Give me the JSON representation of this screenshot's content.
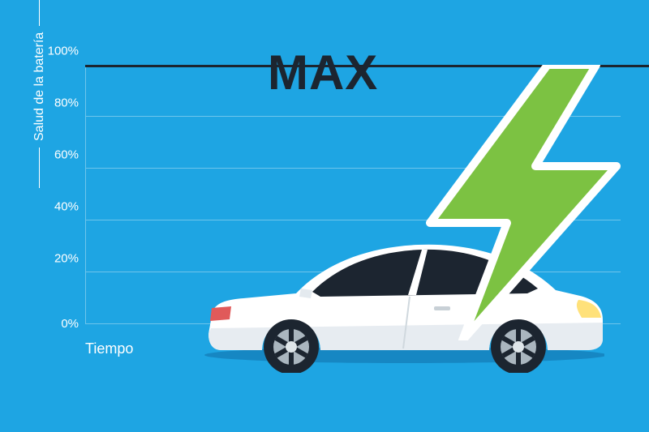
{
  "background_color": "#1ea5e3",
  "chart": {
    "type": "infographic",
    "title": "MAX",
    "title_color": "#1c2530",
    "title_fontsize": 60,
    "title_fontweight": 900,
    "y_axis": {
      "title": "Salud de la batería",
      "title_color": "#ffffff",
      "title_fontsize": 16,
      "min": 0,
      "max": 100,
      "tick_step": 20,
      "ticks": [
        {
          "value": 0,
          "label": "0%"
        },
        {
          "value": 20,
          "label": "20%"
        },
        {
          "value": 40,
          "label": "40%"
        },
        {
          "value": 60,
          "label": "60%"
        },
        {
          "value": 80,
          "label": "80%"
        },
        {
          "value": 100,
          "label": "100%"
        }
      ],
      "tick_label_color": "#ffffff",
      "tick_label_fontsize": 15
    },
    "x_axis": {
      "title": "Tiempo",
      "title_color": "#ffffff",
      "title_fontsize": 18
    },
    "axis_line_color": "#6ec5ec",
    "grid_color": "#6ec5ec",
    "max_line_color": "#1c2530",
    "max_line_width": 3
  },
  "bolt": {
    "fill_color": "#7cc242",
    "outline_color": "#ffffff",
    "outline_width": 10
  },
  "car": {
    "body_color": "#ffffff",
    "body_shadow_color": "#e4eaef",
    "window_color": "#1c2530",
    "wheel_tire_color": "#1c2530",
    "wheel_rim_color": "#aab6bf",
    "wheel_spoke_color": "#1c2530",
    "wheel_hub_color": "#dfe6ea",
    "light_front_color": "#ffe17a",
    "light_rear_color": "#e05a5a",
    "ground_shadow_color": "#1687c3"
  }
}
